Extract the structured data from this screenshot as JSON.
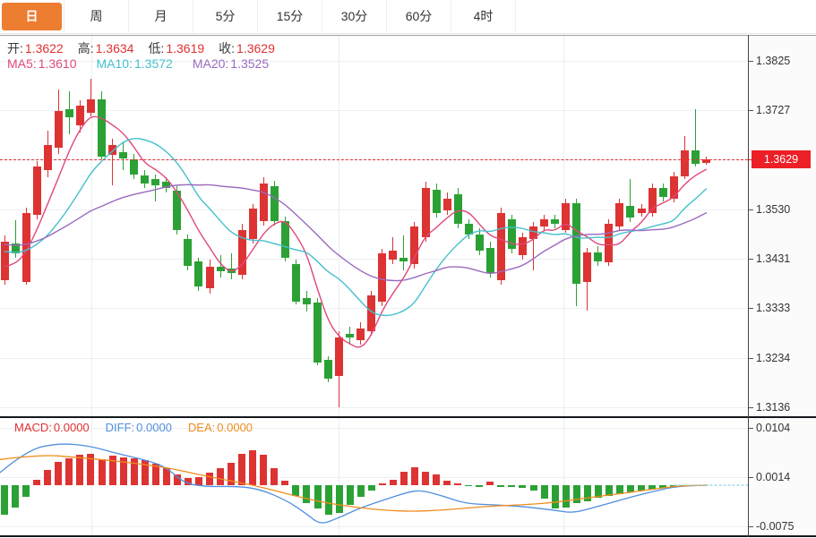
{
  "tabs": {
    "items": [
      {
        "id": "day",
        "label": "日",
        "selected": true
      },
      {
        "id": "week",
        "label": "周",
        "selected": false
      },
      {
        "id": "month",
        "label": "月",
        "selected": false
      },
      {
        "id": "5min",
        "label": "5分",
        "selected": false
      },
      {
        "id": "15min",
        "label": "15分",
        "selected": false
      },
      {
        "id": "30min",
        "label": "30分",
        "selected": false
      },
      {
        "id": "60min",
        "label": "60分",
        "selected": false
      },
      {
        "id": "4hour",
        "label": "4时",
        "selected": false
      }
    ],
    "active_bg": "#ed7d31"
  },
  "main_chart": {
    "ohlc_items": [
      {
        "label": "开:",
        "value": "1.3622"
      },
      {
        "label": "高:",
        "value": "1.3634"
      },
      {
        "label": "低:",
        "value": "1.3619"
      },
      {
        "label": "收:",
        "value": "1.3629"
      }
    ],
    "ma_items": [
      {
        "label": "MA5:",
        "value": "1.3610",
        "color": "#e0487c"
      },
      {
        "label": "MA10:",
        "value": "1.3572",
        "color": "#45c0cd"
      },
      {
        "label": "MA20:",
        "value": "1.3525",
        "color": "#9a6abf"
      }
    ],
    "y_axis_labels": [
      "1.3825",
      "1.3727",
      "1.3629",
      "1.3530",
      "1.3431",
      "1.3333",
      "1.3234",
      "1.3136"
    ],
    "current_price": "1.3629"
  },
  "macd_panel": {
    "legend": [
      {
        "label": "MACD:",
        "value": "0.0000",
        "color": "#e03131"
      },
      {
        "label": "DIFF:",
        "value": "0.0000",
        "color": "#4f8fde"
      },
      {
        "label": "DEA:",
        "value": "0.0000",
        "color": "#f08c1c"
      }
    ],
    "y_axis_labels": [
      "0.0104",
      "0.0014",
      "-0.0075"
    ]
  },
  "colors": {
    "up": "#dd3333",
    "down": "#2ba135",
    "price_line": "#e03131",
    "price_badge_bg": "#ec1f26",
    "zero_dotted": "#8fd3e8"
  },
  "chart_data": {
    "type": "candlestick",
    "title": "Daily candlestick chart with MA5/MA10/MA20 overlays and MACD sub-panel",
    "y_ticks": [
      1.3825,
      1.3727,
      1.3629,
      1.353,
      1.3431,
      1.3333,
      1.3234,
      1.3136
    ],
    "current_price": 1.3629,
    "legend_position": "top-left",
    "grid": true,
    "candles": [
      [
        1.3389,
        1.3478,
        1.338,
        1.3465
      ],
      [
        1.3462,
        1.3508,
        1.3433,
        1.3442
      ],
      [
        1.3385,
        1.3533,
        1.338,
        1.3522
      ],
      [
        1.3519,
        1.3626,
        1.351,
        1.3615
      ],
      [
        1.3608,
        1.3686,
        1.3594,
        1.3658
      ],
      [
        1.3652,
        1.3768,
        1.364,
        1.3725
      ],
      [
        1.3729,
        1.3764,
        1.3679,
        1.3713
      ],
      [
        1.3697,
        1.3747,
        1.3683,
        1.3736
      ],
      [
        1.3722,
        1.3789,
        1.3715,
        1.3748
      ],
      [
        1.3748,
        1.3764,
        1.3629,
        1.3635
      ],
      [
        1.3638,
        1.367,
        1.3578,
        1.3658
      ],
      [
        1.3643,
        1.3665,
        1.3608,
        1.3631
      ],
      [
        1.3629,
        1.364,
        1.359,
        1.3599
      ],
      [
        1.3597,
        1.3608,
        1.3572,
        1.3581
      ],
      [
        1.359,
        1.3599,
        1.3546,
        1.3578
      ],
      [
        1.3585,
        1.3594,
        1.3563,
        1.3572
      ],
      [
        1.3567,
        1.3576,
        1.348,
        1.3489
      ],
      [
        1.3471,
        1.348,
        1.3409,
        1.3417
      ],
      [
        1.3426,
        1.3433,
        1.3368,
        1.3376
      ],
      [
        1.3373,
        1.343,
        1.3362,
        1.3416
      ],
      [
        1.3416,
        1.3439,
        1.3394,
        1.3407
      ],
      [
        1.3412,
        1.3442,
        1.3391,
        1.3403
      ],
      [
        1.34,
        1.3501,
        1.3391,
        1.3489
      ],
      [
        1.3471,
        1.354,
        1.3462,
        1.3531
      ],
      [
        1.3506,
        1.3594,
        1.3498,
        1.3581
      ],
      [
        1.3576,
        1.3587,
        1.3498,
        1.3506
      ],
      [
        1.3506,
        1.3515,
        1.3426,
        1.3433
      ],
      [
        1.3421,
        1.343,
        1.3341,
        1.3346
      ],
      [
        1.3353,
        1.3368,
        1.3327,
        1.3341
      ],
      [
        1.3344,
        1.3353,
        1.322,
        1.3225
      ],
      [
        1.3231,
        1.3238,
        1.3186,
        1.3193
      ],
      [
        1.3198,
        1.3287,
        1.3136,
        1.3275
      ],
      [
        1.3282,
        1.3296,
        1.3261,
        1.3275
      ],
      [
        1.327,
        1.3305,
        1.3261,
        1.3293
      ],
      [
        1.3287,
        1.3368,
        1.3279,
        1.3359
      ],
      [
        1.3346,
        1.3451,
        1.3337,
        1.3442
      ],
      [
        1.343,
        1.3474,
        1.3421,
        1.3448
      ],
      [
        1.3433,
        1.3478,
        1.3409,
        1.3426
      ],
      [
        1.3421,
        1.3505,
        1.3412,
        1.3496
      ],
      [
        1.3474,
        1.3585,
        1.3465,
        1.3572
      ],
      [
        1.3569,
        1.3581,
        1.3514,
        1.3522
      ],
      [
        1.3528,
        1.3563,
        1.3519,
        1.3551
      ],
      [
        1.356,
        1.3572,
        1.3492,
        1.3501
      ],
      [
        1.3501,
        1.351,
        1.3471,
        1.348
      ],
      [
        1.348,
        1.3492,
        1.3439,
        1.3448
      ],
      [
        1.3453,
        1.3465,
        1.3394,
        1.3403
      ],
      [
        1.3389,
        1.3533,
        1.338,
        1.3522
      ],
      [
        1.351,
        1.3519,
        1.3442,
        1.3451
      ],
      [
        1.3439,
        1.3483,
        1.343,
        1.3474
      ],
      [
        1.3471,
        1.3505,
        1.3409,
        1.3496
      ],
      [
        1.3496,
        1.3519,
        1.3487,
        1.351
      ],
      [
        1.351,
        1.3519,
        1.3492,
        1.3501
      ],
      [
        1.3489,
        1.3551,
        1.3483,
        1.3542
      ],
      [
        1.3542,
        1.3551,
        1.3337,
        1.3382
      ],
      [
        1.3385,
        1.3453,
        1.3328,
        1.3444
      ],
      [
        1.3444,
        1.3456,
        1.3417,
        1.3426
      ],
      [
        1.3425,
        1.351,
        1.3417,
        1.3501
      ],
      [
        1.3496,
        1.3551,
        1.3487,
        1.3542
      ],
      [
        1.3537,
        1.359,
        1.3505,
        1.3514
      ],
      [
        1.3522,
        1.354,
        1.3515,
        1.3531
      ],
      [
        1.3522,
        1.3581,
        1.3515,
        1.3572
      ],
      [
        1.3572,
        1.3581,
        1.3546,
        1.3554
      ],
      [
        1.3551,
        1.3604,
        1.3544,
        1.3595
      ],
      [
        1.3595,
        1.3676,
        1.359,
        1.3647
      ],
      [
        1.3647,
        1.3729,
        1.3615,
        1.362
      ],
      [
        1.3622,
        1.3634,
        1.3619,
        1.3629
      ]
    ],
    "prehistory_closes": [
      1.349,
      1.3485,
      1.348,
      1.3478,
      1.3475,
      1.3472,
      1.347,
      1.3468,
      1.3465,
      1.3462,
      1.347,
      1.348,
      1.349,
      1.348,
      1.346,
      1.342,
      1.34,
      1.3395,
      1.34
    ],
    "ma_periods": [
      5,
      10,
      20
    ],
    "macd": {
      "y_ticks": [
        0.0104,
        0.0014,
        -0.0075
      ],
      "values": {
        "macd": "0.0000",
        "diff": "0.0000",
        "dea": "0.0000"
      },
      "histogram": [
        -0.0054,
        -0.0041,
        -0.0021,
        0.001,
        0.0028,
        0.0043,
        0.0049,
        0.0056,
        0.0057,
        0.0047,
        0.0054,
        0.0051,
        0.0049,
        0.0046,
        0.0039,
        0.0031,
        0.002,
        0.0013,
        0.0015,
        0.0023,
        0.0031,
        0.0041,
        0.0057,
        0.0064,
        0.0056,
        0.0031,
        0.0008,
        -0.002,
        -0.0033,
        -0.0043,
        -0.0054,
        -0.0051,
        -0.0036,
        -0.0021,
        -0.001,
        0.0003,
        0.001,
        0.0025,
        0.0033,
        0.0025,
        0.002,
        0.0008,
        0.0003,
        -0.0002,
        -0.0003,
        0.0007,
        -0.0003,
        -0.0004,
        -0.0005,
        -0.001,
        -0.0025,
        -0.0043,
        -0.0041,
        -0.0033,
        -0.0029,
        -0.0023,
        -0.002,
        -0.0016,
        -0.0013,
        -0.001,
        -0.0008,
        -0.0005,
        -0.0003,
        -0.0001,
        0.0,
        0.0
      ],
      "diff": [
        [
          0,
          0.0023
        ],
        [
          30,
          0.0064
        ],
        [
          65,
          0.0077
        ],
        [
          100,
          0.0072
        ],
        [
          130,
          0.0058
        ],
        [
          160,
          0.0047
        ],
        [
          185,
          0.0034
        ],
        [
          205,
          0.0004
        ],
        [
          230,
          -0.0003
        ],
        [
          265,
          -0.0002
        ],
        [
          290,
          -0.0007
        ],
        [
          320,
          -0.0028
        ],
        [
          342,
          -0.0052
        ],
        [
          357,
          -0.0072
        ],
        [
          375,
          -0.0062
        ],
        [
          400,
          -0.0043
        ],
        [
          428,
          -0.0027
        ],
        [
          455,
          -0.0013
        ],
        [
          470,
          -0.0009
        ],
        [
          495,
          -0.002
        ],
        [
          520,
          -0.0034
        ],
        [
          555,
          -0.0036
        ],
        [
          590,
          -0.004
        ],
        [
          620,
          -0.0046
        ],
        [
          640,
          -0.0051
        ],
        [
          665,
          -0.004
        ],
        [
          695,
          -0.0026
        ],
        [
          725,
          -0.0013
        ],
        [
          755,
          -0.0002
        ],
        [
          790,
          0.0
        ]
      ],
      "dea": [
        [
          0,
          0.0047
        ],
        [
          45,
          0.0056
        ],
        [
          85,
          0.0051
        ],
        [
          125,
          0.0045
        ],
        [
          160,
          0.0038
        ],
        [
          190,
          0.0031
        ],
        [
          220,
          0.002
        ],
        [
          250,
          0.001
        ],
        [
          280,
          0.0001
        ],
        [
          310,
          -0.0011
        ],
        [
          340,
          -0.0024
        ],
        [
          370,
          -0.0034
        ],
        [
          400,
          -0.0041
        ],
        [
          430,
          -0.0046
        ],
        [
          460,
          -0.0048
        ],
        [
          490,
          -0.0046
        ],
        [
          520,
          -0.0042
        ],
        [
          550,
          -0.0038
        ],
        [
          580,
          -0.0036
        ],
        [
          610,
          -0.0033
        ],
        [
          640,
          -0.0027
        ],
        [
          670,
          -0.002
        ],
        [
          700,
          -0.0014
        ],
        [
          730,
          -0.0007
        ],
        [
          760,
          -0.0001
        ],
        [
          790,
          0.0
        ]
      ]
    }
  }
}
